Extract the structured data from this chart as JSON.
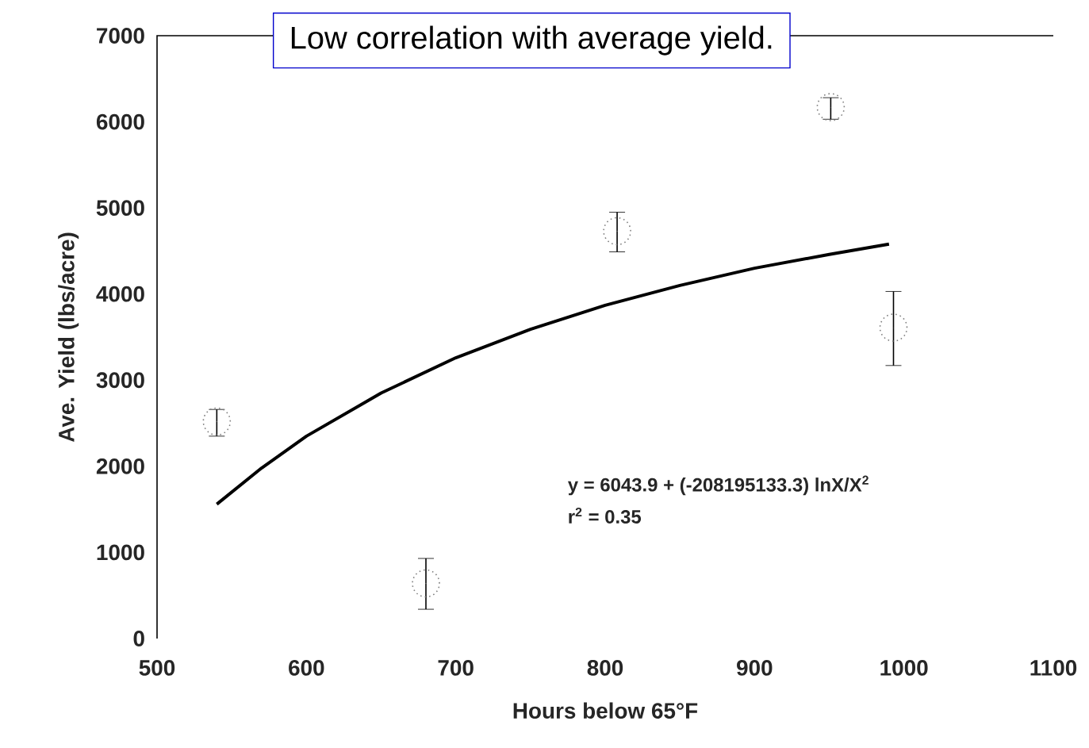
{
  "chart_data": {
    "type": "scatter",
    "title": "Low correlation with average yield.",
    "xlabel": "Hours below 65°F",
    "ylabel": "Ave. Yield (lbs/acre)",
    "annotations": [
      "y = 6043.9 + (-208195133.3) lnX/X$^{2}$",
      "r$^{2}$ = 0.35"
    ],
    "xlim": [
      500,
      1100
    ],
    "xticks": [
      500,
      600,
      700,
      800,
      900,
      1000,
      1100
    ],
    "ylim": [
      0,
      7000
    ],
    "yticks": [
      0,
      1000,
      2000,
      3000,
      4000,
      5000,
      6000,
      7000
    ],
    "series": [
      {
        "marker": "circle",
        "color": "#808080",
        "x": [
          540,
          680,
          808,
          951,
          993
        ],
        "values": [
          2520,
          640,
          4730,
          6170,
          3610
        ],
        "errors": [
          [
            2350,
            2660
          ],
          [
            340,
            930
          ],
          [
            4490,
            4950
          ],
          [
            6030,
            6280
          ],
          [
            3170,
            4030
          ]
        ]
      },
      {
        "type": "line",
        "color": "#000000",
        "x": [
          540,
          570,
          600,
          650,
          700,
          750,
          800,
          850,
          900,
          950,
          990
        ],
        "values": [
          1560,
          1980,
          2350,
          2850,
          3260,
          3590,
          3870,
          4100,
          4300,
          4460,
          4580
        ]
      }
    ]
  }
}
